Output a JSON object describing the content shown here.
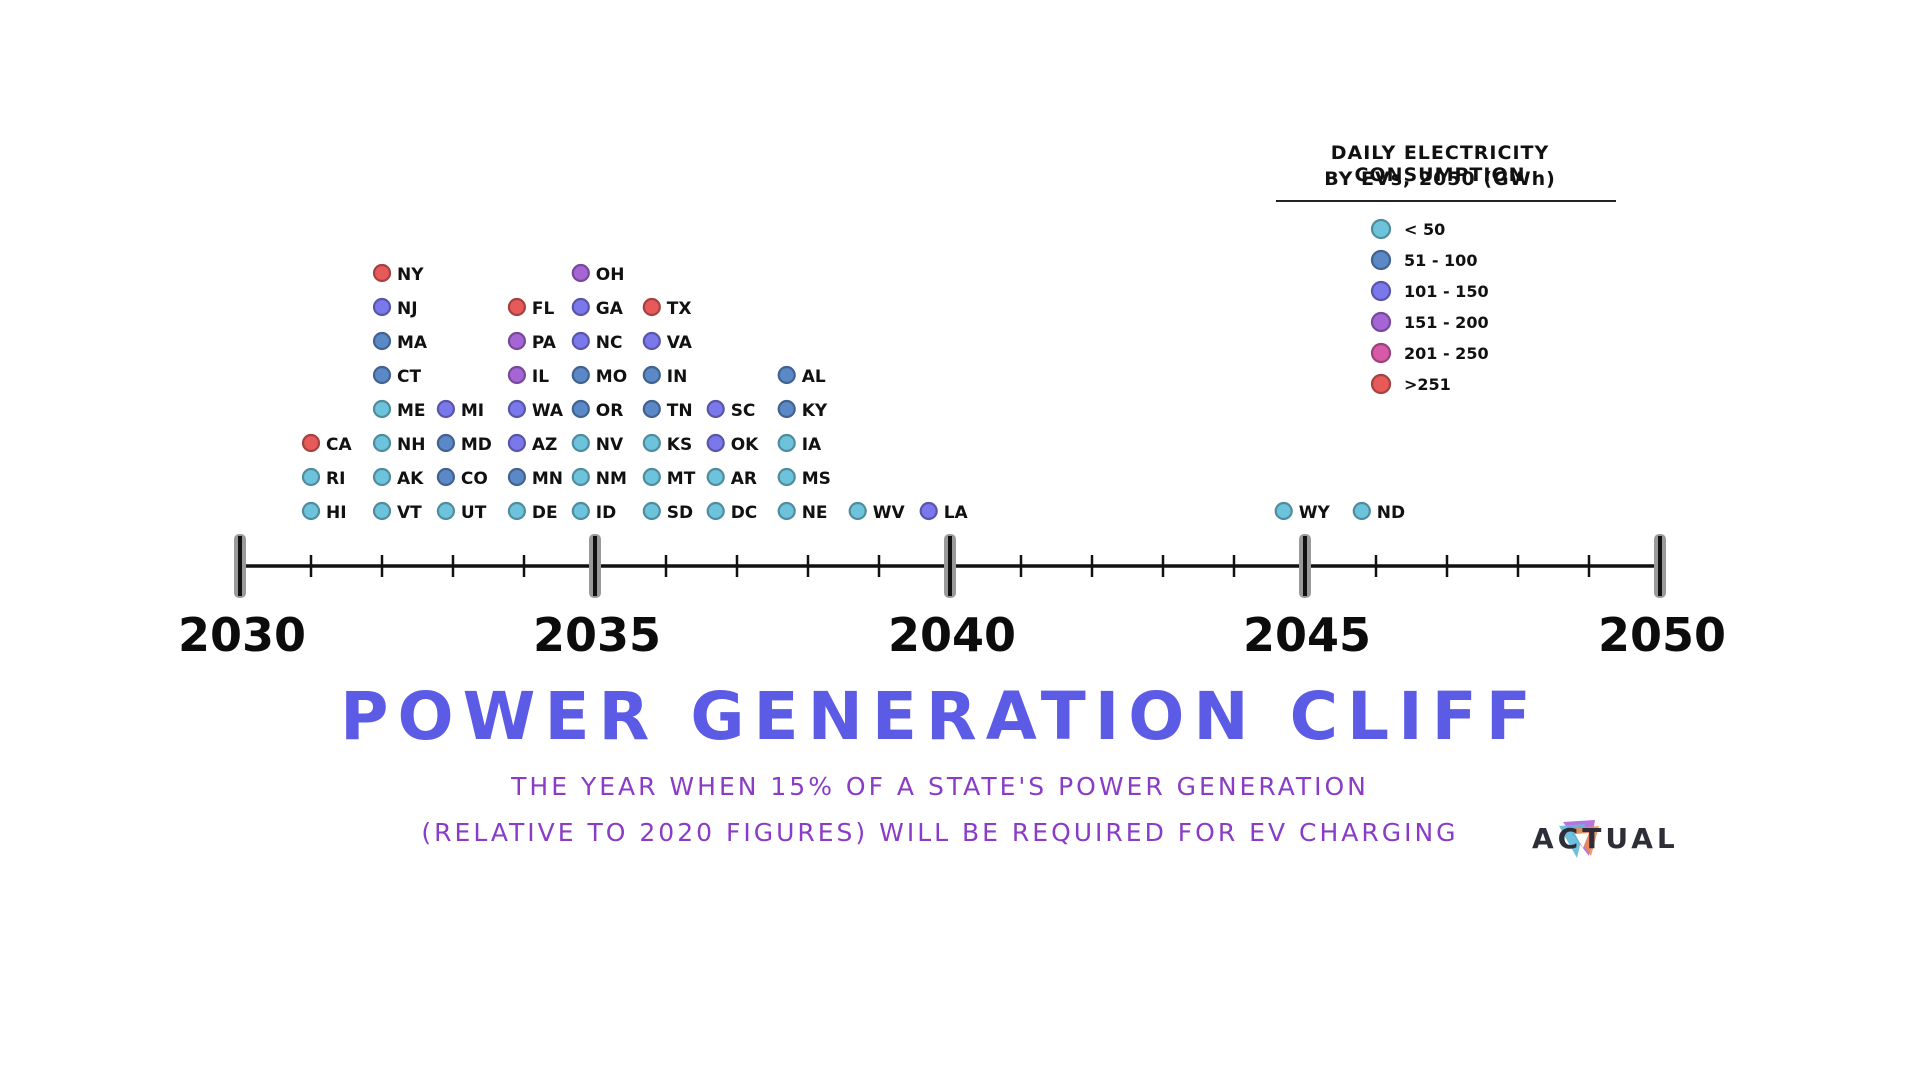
{
  "chart_data": {
    "type": "scatter",
    "title": "POWER GENERATION CLIFF",
    "subtitle_line1": "THE YEAR WHEN 15% OF A STATE'S POWER GENERATION",
    "subtitle_line2": "(RELATIVE TO 2020 FIGURES) WILL BE REQUIRED FOR EV CHARGING",
    "xlim": [
      2030,
      2050
    ],
    "major_ticks": [
      "2030",
      "2035",
      "2040",
      "2045",
      "2050"
    ],
    "legend_title_line1": "DAILY ELECTRICITY CONSUMPTION",
    "legend_title_line2": "BY EVs, 2050 (GWh)",
    "legend_placement": "top-right",
    "legend": [
      {
        "label": "< 50",
        "color": "#6ec3dc"
      },
      {
        "label": "51 - 100",
        "color": "#5b88c6"
      },
      {
        "label": "101 - 150",
        "color": "#7a78ea"
      },
      {
        "label": "151 - 200",
        "color": "#a565d4"
      },
      {
        "label": "201 - 250",
        "color": "#d75aa8"
      },
      {
        "label": ">251",
        "color": "#e65a5a"
      }
    ],
    "points": [
      {
        "state": "HI",
        "year": 2031.0,
        "category": 0
      },
      {
        "state": "RI",
        "year": 2031.0,
        "category": 0
      },
      {
        "state": "CA",
        "year": 2031.0,
        "category": 5
      },
      {
        "state": "VT",
        "year": 2032.0,
        "category": 0
      },
      {
        "state": "AK",
        "year": 2032.0,
        "category": 0
      },
      {
        "state": "NH",
        "year": 2032.0,
        "category": 0
      },
      {
        "state": "ME",
        "year": 2032.0,
        "category": 0
      },
      {
        "state": "CT",
        "year": 2032.0,
        "category": 1
      },
      {
        "state": "MA",
        "year": 2032.0,
        "category": 1
      },
      {
        "state": "NJ",
        "year": 2032.0,
        "category": 2
      },
      {
        "state": "NY",
        "year": 2032.0,
        "category": 5
      },
      {
        "state": "UT",
        "year": 2032.9,
        "category": 0
      },
      {
        "state": "CO",
        "year": 2032.9,
        "category": 1
      },
      {
        "state": "MD",
        "year": 2032.9,
        "category": 1
      },
      {
        "state": "MI",
        "year": 2032.9,
        "category": 2
      },
      {
        "state": "DE",
        "year": 2033.9,
        "category": 0
      },
      {
        "state": "MN",
        "year": 2033.9,
        "category": 1
      },
      {
        "state": "AZ",
        "year": 2033.9,
        "category": 2
      },
      {
        "state": "WA",
        "year": 2033.9,
        "category": 2
      },
      {
        "state": "IL",
        "year": 2033.9,
        "category": 3
      },
      {
        "state": "PA",
        "year": 2033.9,
        "category": 3
      },
      {
        "state": "FL",
        "year": 2033.9,
        "category": 5
      },
      {
        "state": "ID",
        "year": 2034.8,
        "category": 0
      },
      {
        "state": "NM",
        "year": 2034.8,
        "category": 0
      },
      {
        "state": "NV",
        "year": 2034.8,
        "category": 0
      },
      {
        "state": "OR",
        "year": 2034.8,
        "category": 1
      },
      {
        "state": "MO",
        "year": 2034.8,
        "category": 1
      },
      {
        "state": "NC",
        "year": 2034.8,
        "category": 2
      },
      {
        "state": "GA",
        "year": 2034.8,
        "category": 2
      },
      {
        "state": "OH",
        "year": 2034.8,
        "category": 3
      },
      {
        "state": "SD",
        "year": 2035.8,
        "category": 0
      },
      {
        "state": "MT",
        "year": 2035.8,
        "category": 0
      },
      {
        "state": "KS",
        "year": 2035.8,
        "category": 0
      },
      {
        "state": "TN",
        "year": 2035.8,
        "category": 1
      },
      {
        "state": "IN",
        "year": 2035.8,
        "category": 1
      },
      {
        "state": "VA",
        "year": 2035.8,
        "category": 2
      },
      {
        "state": "TX",
        "year": 2035.8,
        "category": 5
      },
      {
        "state": "DC",
        "year": 2036.7,
        "category": 0
      },
      {
        "state": "AR",
        "year": 2036.7,
        "category": 0
      },
      {
        "state": "OK",
        "year": 2036.7,
        "category": 2
      },
      {
        "state": "SC",
        "year": 2036.7,
        "category": 2
      },
      {
        "state": "NE",
        "year": 2037.7,
        "category": 0
      },
      {
        "state": "MS",
        "year": 2037.7,
        "category": 0
      },
      {
        "state": "IA",
        "year": 2037.7,
        "category": 0
      },
      {
        "state": "KY",
        "year": 2037.7,
        "category": 1
      },
      {
        "state": "AL",
        "year": 2037.7,
        "category": 1
      },
      {
        "state": "WV",
        "year": 2038.7,
        "category": 0
      },
      {
        "state": "LA",
        "year": 2039.7,
        "category": 2
      },
      {
        "state": "WY",
        "year": 2044.7,
        "category": 0
      },
      {
        "state": "ND",
        "year": 2045.8,
        "category": 0
      }
    ]
  },
  "brand": {
    "name": "ACTUAL"
  }
}
